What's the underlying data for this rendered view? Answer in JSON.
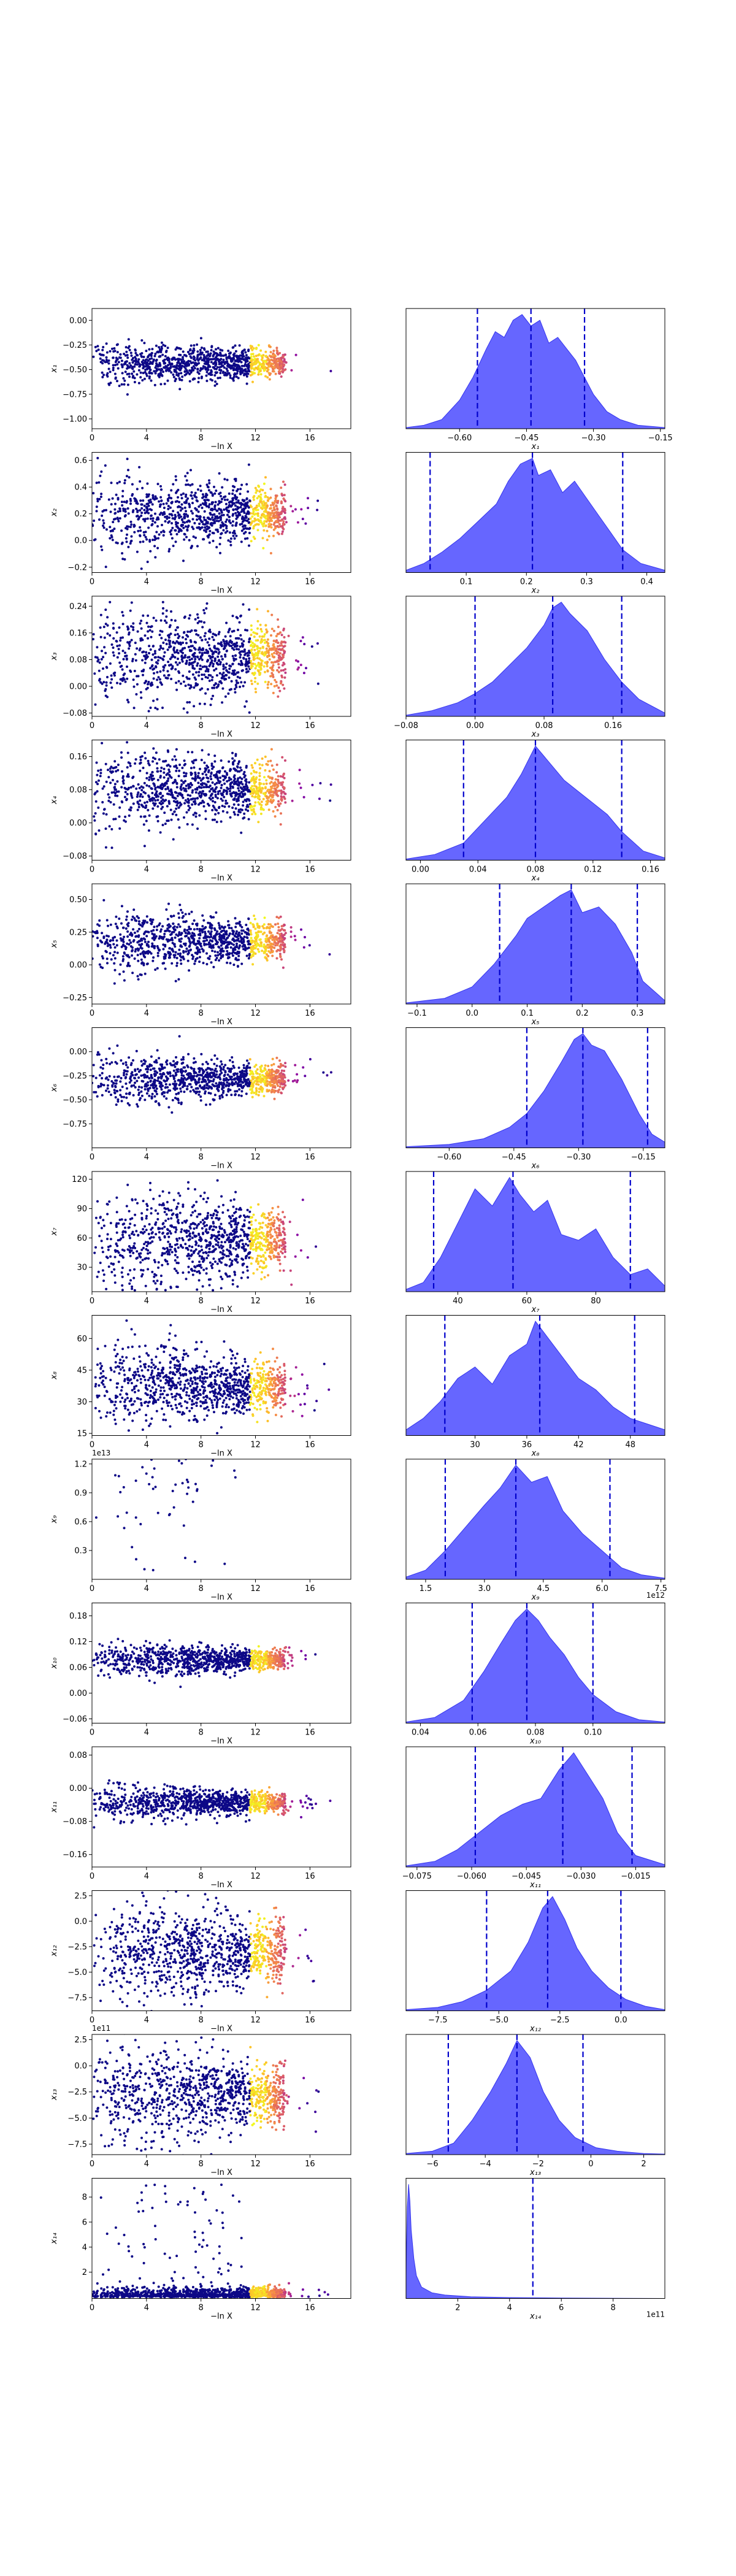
{
  "figure": {
    "description_free": true,
    "colors": {
      "background": "#ffffff",
      "axis": "#000000",
      "scatter_low_weight": "#0d0887",
      "scatter_mid_weight": "#cc4778",
      "scatter_high_weight": "#fdc328",
      "posterior_fill": "#5555ff",
      "posterior_edge": "#3333ee",
      "quantile_line": "#0000cc"
    },
    "colormap": "plasma",
    "scatter_xlabel": "−ln X",
    "scatter_xlim": [
      0,
      19
    ],
    "scatter_xticks": [
      "0",
      "4",
      "8",
      "12",
      "16"
    ],
    "scatter_xtick_values": [
      0,
      4,
      8,
      12,
      16
    ]
  },
  "chart_data": [
    {
      "type": "scatter",
      "ylabel": "x₁",
      "ylim": [
        -1.1,
        0.12
      ],
      "yticks": [
        0.0,
        -0.25,
        -0.5,
        -0.75,
        -1.0
      ],
      "ytick_labels": [
        "0.00",
        "−0.25",
        "−0.50",
        "−0.75",
        "−1.00"
      ],
      "xlabel": "−ln X",
      "posterior": {
        "type": "area",
        "xlabel": "x₁",
        "xlim": [
          -0.72,
          -0.14
        ],
        "xticks": [
          -0.6,
          -0.45,
          -0.3,
          -0.15
        ],
        "xtick_labels": [
          "−0.60",
          "−0.45",
          "−0.30",
          "−0.15"
        ],
        "quantiles": [
          -0.56,
          -0.44,
          -0.32
        ],
        "density_x": [
          -0.72,
          -0.68,
          -0.64,
          -0.6,
          -0.57,
          -0.54,
          -0.52,
          -0.5,
          -0.48,
          -0.46,
          -0.44,
          -0.42,
          -0.4,
          -0.38,
          -0.36,
          -0.34,
          -0.32,
          -0.3,
          -0.27,
          -0.24,
          -0.2,
          -0.14
        ],
        "density_y": [
          0.01,
          0.03,
          0.08,
          0.25,
          0.45,
          0.7,
          0.85,
          0.8,
          0.95,
          1.0,
          0.9,
          0.95,
          0.75,
          0.8,
          0.7,
          0.6,
          0.45,
          0.3,
          0.15,
          0.08,
          0.03,
          0.01
        ]
      }
    },
    {
      "type": "scatter",
      "ylabel": "x₂",
      "ylim": [
        -0.24,
        0.66
      ],
      "yticks": [
        0.6,
        0.4,
        0.2,
        0.0,
        -0.2
      ],
      "ytick_labels": [
        "0.6",
        "0.4",
        "0.2",
        "0.0",
        "−0.2"
      ],
      "xlabel": "−ln X",
      "posterior": {
        "type": "area",
        "xlabel": "x₂",
        "xlim": [
          0.0,
          0.43
        ],
        "xticks": [
          0.1,
          0.2,
          0.3,
          0.4
        ],
        "xtick_labels": [
          "0.1",
          "0.2",
          "0.3",
          "0.4"
        ],
        "quantiles": [
          0.04,
          0.21,
          0.36
        ],
        "density_x": [
          0.0,
          0.03,
          0.06,
          0.09,
          0.12,
          0.15,
          0.17,
          0.19,
          0.21,
          0.22,
          0.24,
          0.26,
          0.28,
          0.3,
          0.32,
          0.34,
          0.36,
          0.39,
          0.43
        ],
        "density_y": [
          0.02,
          0.08,
          0.18,
          0.3,
          0.45,
          0.6,
          0.8,
          0.95,
          1.0,
          0.85,
          0.9,
          0.7,
          0.8,
          0.65,
          0.5,
          0.35,
          0.2,
          0.08,
          0.02
        ]
      }
    },
    {
      "type": "scatter",
      "ylabel": "x₃",
      "ylim": [
        -0.09,
        0.27
      ],
      "yticks": [
        0.24,
        0.16,
        0.08,
        0.0,
        -0.08
      ],
      "ytick_labels": [
        "0.24",
        "0.16",
        "0.08",
        "0.00",
        "−0.08"
      ],
      "xlabel": "−ln X",
      "posterior": {
        "type": "area",
        "xlabel": "x₃",
        "xlim": [
          -0.08,
          0.22
        ],
        "xticks": [
          -0.08,
          0.0,
          0.08,
          0.16
        ],
        "xtick_labels": [
          "−0.08",
          "0.00",
          "0.08",
          "0.16"
        ],
        "quantiles": [
          0.0,
          0.09,
          0.17
        ],
        "density_x": [
          -0.08,
          -0.05,
          -0.02,
          0.0,
          0.02,
          0.04,
          0.06,
          0.08,
          0.09,
          0.1,
          0.11,
          0.13,
          0.15,
          0.17,
          0.19,
          0.22
        ],
        "density_y": [
          0.01,
          0.05,
          0.12,
          0.2,
          0.3,
          0.45,
          0.6,
          0.8,
          0.95,
          1.0,
          0.9,
          0.75,
          0.5,
          0.3,
          0.15,
          0.03
        ]
      }
    },
    {
      "type": "scatter",
      "ylabel": "x₄",
      "ylim": [
        -0.09,
        0.2
      ],
      "yticks": [
        0.16,
        0.08,
        0.0,
        -0.08
      ],
      "ytick_labels": [
        "0.16",
        "0.08",
        "0.00",
        "−0.08"
      ],
      "xlabel": "−ln X",
      "posterior": {
        "type": "area",
        "xlabel": "x₄",
        "xlim": [
          -0.01,
          0.17
        ],
        "xticks": [
          0.0,
          0.04,
          0.08,
          0.12,
          0.16
        ],
        "xtick_labels": [
          "0.00",
          "0.04",
          "0.08",
          "0.12",
          "0.16"
        ],
        "quantiles": [
          0.03,
          0.08,
          0.14
        ],
        "density_x": [
          -0.01,
          0.01,
          0.03,
          0.045,
          0.06,
          0.07,
          0.08,
          0.09,
          0.1,
          0.11,
          0.12,
          0.13,
          0.14,
          0.155,
          0.17
        ],
        "density_y": [
          0.01,
          0.05,
          0.15,
          0.35,
          0.55,
          0.75,
          1.0,
          0.85,
          0.7,
          0.6,
          0.5,
          0.4,
          0.25,
          0.08,
          0.02
        ]
      }
    },
    {
      "type": "scatter",
      "ylabel": "x₅",
      "ylim": [
        -0.3,
        0.62
      ],
      "yticks": [
        0.5,
        0.25,
        0.0,
        -0.25
      ],
      "ytick_labels": [
        "0.50",
        "0.25",
        "0.00",
        "−0.25"
      ],
      "xlabel": "−ln X",
      "posterior": {
        "type": "area",
        "xlabel": "x₅",
        "xlim": [
          -0.12,
          0.35
        ],
        "xticks": [
          -0.1,
          0.0,
          0.1,
          0.2,
          0.3
        ],
        "xtick_labels": [
          "−0.1",
          "0.0",
          "0.1",
          "0.2",
          "0.3"
        ],
        "quantiles": [
          0.05,
          0.18,
          0.3
        ],
        "density_x": [
          -0.12,
          -0.05,
          0.0,
          0.04,
          0.08,
          0.1,
          0.13,
          0.16,
          0.18,
          0.2,
          0.23,
          0.26,
          0.29,
          0.31,
          0.35
        ],
        "density_y": [
          0.01,
          0.05,
          0.15,
          0.35,
          0.6,
          0.75,
          0.85,
          0.95,
          1.0,
          0.8,
          0.85,
          0.7,
          0.45,
          0.2,
          0.03
        ]
      }
    },
    {
      "type": "scatter",
      "ylabel": "x₆",
      "ylim": [
        -1.0,
        0.25
      ],
      "yticks": [
        0.0,
        -0.25,
        -0.5,
        -0.75
      ],
      "ytick_labels": [
        "0.00",
        "−0.25",
        "−0.50",
        "−0.75"
      ],
      "xlabel": "−ln X",
      "posterior": {
        "type": "area",
        "xlabel": "x₆",
        "xlim": [
          -0.7,
          -0.1
        ],
        "xticks": [
          -0.6,
          -0.45,
          -0.3,
          -0.15
        ],
        "xtick_labels": [
          "−0.60",
          "−0.45",
          "−0.30",
          "−0.15"
        ],
        "quantiles": [
          -0.42,
          -0.29,
          -0.14
        ],
        "density_x": [
          -0.7,
          -0.6,
          -0.52,
          -0.46,
          -0.42,
          -0.38,
          -0.34,
          -0.31,
          -0.29,
          -0.27,
          -0.24,
          -0.2,
          -0.16,
          -0.13,
          -0.1
        ],
        "density_y": [
          0.01,
          0.03,
          0.08,
          0.18,
          0.3,
          0.5,
          0.75,
          0.95,
          1.0,
          0.9,
          0.85,
          0.6,
          0.3,
          0.12,
          0.05
        ]
      }
    },
    {
      "type": "scatter",
      "ylabel": "x₇",
      "ylim": [
        5,
        128
      ],
      "yticks": [
        120,
        90,
        60,
        30
      ],
      "ytick_labels": [
        "120",
        "90",
        "60",
        "30"
      ],
      "xlabel": "−ln X",
      "posterior": {
        "type": "area",
        "xlabel": "x₇",
        "xlim": [
          25,
          100
        ],
        "xticks": [
          40,
          60,
          80
        ],
        "xtick_labels": [
          "40",
          "60",
          "80"
        ],
        "quantiles": [
          33,
          56,
          90
        ],
        "density_x": [
          25,
          30,
          35,
          40,
          45,
          50,
          55,
          58,
          62,
          66,
          70,
          75,
          80,
          85,
          90,
          95,
          100
        ],
        "density_y": [
          0.02,
          0.08,
          0.3,
          0.6,
          0.9,
          0.75,
          1.0,
          0.85,
          0.7,
          0.8,
          0.5,
          0.45,
          0.55,
          0.3,
          0.15,
          0.2,
          0.05
        ]
      }
    },
    {
      "type": "scatter",
      "ylabel": "x₈",
      "ylim": [
        14,
        71
      ],
      "yticks": [
        60,
        45,
        30,
        15
      ],
      "ytick_labels": [
        "60",
        "45",
        "30",
        "15"
      ],
      "xlabel": "−ln X",
      "posterior": {
        "type": "area",
        "xlabel": "x₈",
        "xlim": [
          22,
          52
        ],
        "xticks": [
          30,
          36,
          42,
          48
        ],
        "xtick_labels": [
          "30",
          "36",
          "42",
          "48"
        ],
        "quantiles": [
          26.5,
          37.5,
          48.5
        ],
        "density_x": [
          22,
          24,
          26,
          28,
          30,
          32,
          34,
          36,
          37,
          38,
          40,
          42,
          44,
          46,
          48,
          50,
          52
        ],
        "density_y": [
          0.05,
          0.15,
          0.3,
          0.5,
          0.6,
          0.45,
          0.7,
          0.8,
          1.0,
          0.9,
          0.7,
          0.5,
          0.4,
          0.25,
          0.15,
          0.1,
          0.05
        ]
      }
    },
    {
      "type": "scatter",
      "ylabel": "x₉",
      "ylim": [
        0.0,
        1.25
      ],
      "yticks": [
        1.2,
        0.9,
        0.6,
        0.3
      ],
      "ytick_labels": [
        "1.2",
        "0.9",
        "0.6",
        "0.3"
      ],
      "y_offset_label": "1e13",
      "xlabel": "−ln X",
      "posterior": {
        "type": "area",
        "xlabel": "x₉",
        "x_offset_label": "1e12",
        "xlim": [
          1.0,
          7.6
        ],
        "xticks": [
          1.5,
          3.0,
          4.5,
          6.0,
          7.5
        ],
        "xtick_labels": [
          "1.5",
          "3.0",
          "4.5",
          "6.0",
          "7.5"
        ],
        "quantiles": [
          2.0,
          3.8,
          6.2
        ],
        "density_x": [
          1.0,
          1.5,
          2.0,
          2.5,
          3.0,
          3.4,
          3.8,
          4.2,
          4.6,
          5.0,
          5.5,
          6.0,
          6.5,
          7.0,
          7.6
        ],
        "density_y": [
          0.02,
          0.08,
          0.25,
          0.45,
          0.65,
          0.8,
          1.0,
          0.85,
          0.9,
          0.6,
          0.4,
          0.25,
          0.1,
          0.04,
          0.01
        ]
      }
    },
    {
      "type": "scatter",
      "ylabel": "x₁₀",
      "ylim": [
        -0.07,
        0.21
      ],
      "yticks": [
        0.18,
        0.12,
        0.06,
        0.0,
        -0.06
      ],
      "ytick_labels": [
        "0.18",
        "0.12",
        "0.06",
        "0.00",
        "−0.06"
      ],
      "xlabel": "−ln X",
      "posterior": {
        "type": "area",
        "xlabel": "x₁₀",
        "xlim": [
          0.035,
          0.125
        ],
        "xticks": [
          0.04,
          0.06,
          0.08,
          0.1
        ],
        "xtick_labels": [
          "0.04",
          "0.06",
          "0.08",
          "0.10"
        ],
        "quantiles": [
          0.058,
          0.077,
          0.1
        ],
        "density_x": [
          0.035,
          0.045,
          0.055,
          0.062,
          0.068,
          0.073,
          0.077,
          0.081,
          0.085,
          0.09,
          0.095,
          0.1,
          0.108,
          0.116,
          0.125
        ],
        "density_y": [
          0.01,
          0.05,
          0.2,
          0.45,
          0.7,
          0.9,
          1.0,
          0.9,
          0.75,
          0.6,
          0.4,
          0.25,
          0.1,
          0.03,
          0.01
        ]
      }
    },
    {
      "type": "scatter",
      "ylabel": "x₁₁",
      "ylim": [
        -0.19,
        0.1
      ],
      "yticks": [
        0.08,
        0.0,
        -0.08,
        -0.16
      ],
      "ytick_labels": [
        "0.08",
        "0.00",
        "−0.08",
        "−0.16"
      ],
      "xlabel": "−ln X",
      "posterior": {
        "type": "area",
        "xlabel": "x₁₁",
        "xlim": [
          -0.078,
          -0.007
        ],
        "xticks": [
          -0.075,
          -0.06,
          -0.045,
          -0.03,
          -0.015
        ],
        "xtick_labels": [
          "−0.075",
          "−0.060",
          "−0.045",
          "−0.030",
          "−0.015"
        ],
        "quantiles": [
          -0.059,
          -0.035,
          -0.016
        ],
        "density_x": [
          -0.078,
          -0.07,
          -0.064,
          -0.058,
          -0.052,
          -0.046,
          -0.041,
          -0.036,
          -0.032,
          -0.028,
          -0.024,
          -0.02,
          -0.015,
          -0.007
        ],
        "density_y": [
          0.01,
          0.05,
          0.15,
          0.3,
          0.45,
          0.55,
          0.6,
          0.85,
          1.0,
          0.8,
          0.6,
          0.3,
          0.1,
          0.02
        ]
      }
    },
    {
      "type": "scatter",
      "ylabel": "x₁₂",
      "ylim": [
        -8.8,
        3.0
      ],
      "yticks": [
        2.5,
        0.0,
        -2.5,
        -5.0,
        -7.5
      ],
      "ytick_labels": [
        "2.5",
        "0.0",
        "−2.5",
        "−5.0",
        "−7.5"
      ],
      "xlabel": "−ln X",
      "posterior": {
        "type": "area",
        "xlabel": "x₁₂",
        "xlim": [
          -8.8,
          1.8
        ],
        "xticks": [
          -7.5,
          -5.0,
          -2.5,
          0.0
        ],
        "xtick_labels": [
          "−7.5",
          "−5.0",
          "−2.5",
          "0.0"
        ],
        "quantiles": [
          -5.5,
          -3.0,
          0.0
        ],
        "density_x": [
          -8.8,
          -7.5,
          -6.5,
          -5.5,
          -4.5,
          -3.8,
          -3.2,
          -2.8,
          -2.3,
          -1.8,
          -1.2,
          -0.5,
          0.2,
          1.0,
          1.8
        ],
        "density_y": [
          0.01,
          0.03,
          0.08,
          0.18,
          0.35,
          0.6,
          0.9,
          1.0,
          0.8,
          0.55,
          0.35,
          0.2,
          0.1,
          0.04,
          0.01
        ]
      }
    },
    {
      "type": "scatter",
      "ylabel": "x₁₃",
      "ylim": [
        -8.5,
        3.0
      ],
      "yticks": [
        2.5,
        0.0,
        -2.5,
        -5.0,
        -7.5
      ],
      "ytick_labels": [
        "2.5",
        "0.0",
        "−2.5",
        "−5.0",
        "−7.5"
      ],
      "y_offset_label": "1e11",
      "xlabel": "−ln X",
      "posterior": {
        "type": "area",
        "xlabel": "x₁₃",
        "xlim": [
          -7.0,
          2.8
        ],
        "xticks": [
          -6,
          -4,
          -2,
          0,
          2
        ],
        "xtick_labels": [
          "−6",
          "−4",
          "−2",
          "0",
          "2"
        ],
        "quantiles": [
          -5.4,
          -2.8,
          -0.3
        ],
        "density_x": [
          -7.0,
          -6.0,
          -5.2,
          -4.5,
          -3.8,
          -3.2,
          -2.8,
          -2.3,
          -1.8,
          -1.2,
          -0.6,
          0.2,
          1.0,
          2.0,
          2.8
        ],
        "density_y": [
          0.01,
          0.03,
          0.1,
          0.3,
          0.55,
          0.8,
          1.0,
          0.85,
          0.55,
          0.3,
          0.15,
          0.06,
          0.03,
          0.01,
          0.005
        ]
      }
    },
    {
      "type": "scatter",
      "ylabel": "x₁₄",
      "ylim": [
        -0.1,
        9.5
      ],
      "yticks": [
        8,
        6,
        4,
        2
      ],
      "ytick_labels": [
        "8",
        "6",
        "4",
        "2"
      ],
      "xlabel": "−ln X",
      "posterior": {
        "type": "area",
        "xlabel": "x₁₄",
        "x_offset_label": "1e11",
        "xlim": [
          0.0,
          10.0
        ],
        "xticks": [
          2,
          4,
          6,
          8
        ],
        "xtick_labels": [
          "2",
          "4",
          "6",
          "8"
        ],
        "quantiles": [
          4.9
        ],
        "density_x": [
          0.0,
          0.05,
          0.1,
          0.15,
          0.2,
          0.3,
          0.4,
          0.6,
          1.0,
          1.5,
          2.5,
          4.0,
          6.0,
          10.0
        ],
        "density_y": [
          0.2,
          0.8,
          1.0,
          0.85,
          0.6,
          0.35,
          0.2,
          0.1,
          0.05,
          0.03,
          0.015,
          0.008,
          0.004,
          0.0
        ]
      }
    }
  ]
}
